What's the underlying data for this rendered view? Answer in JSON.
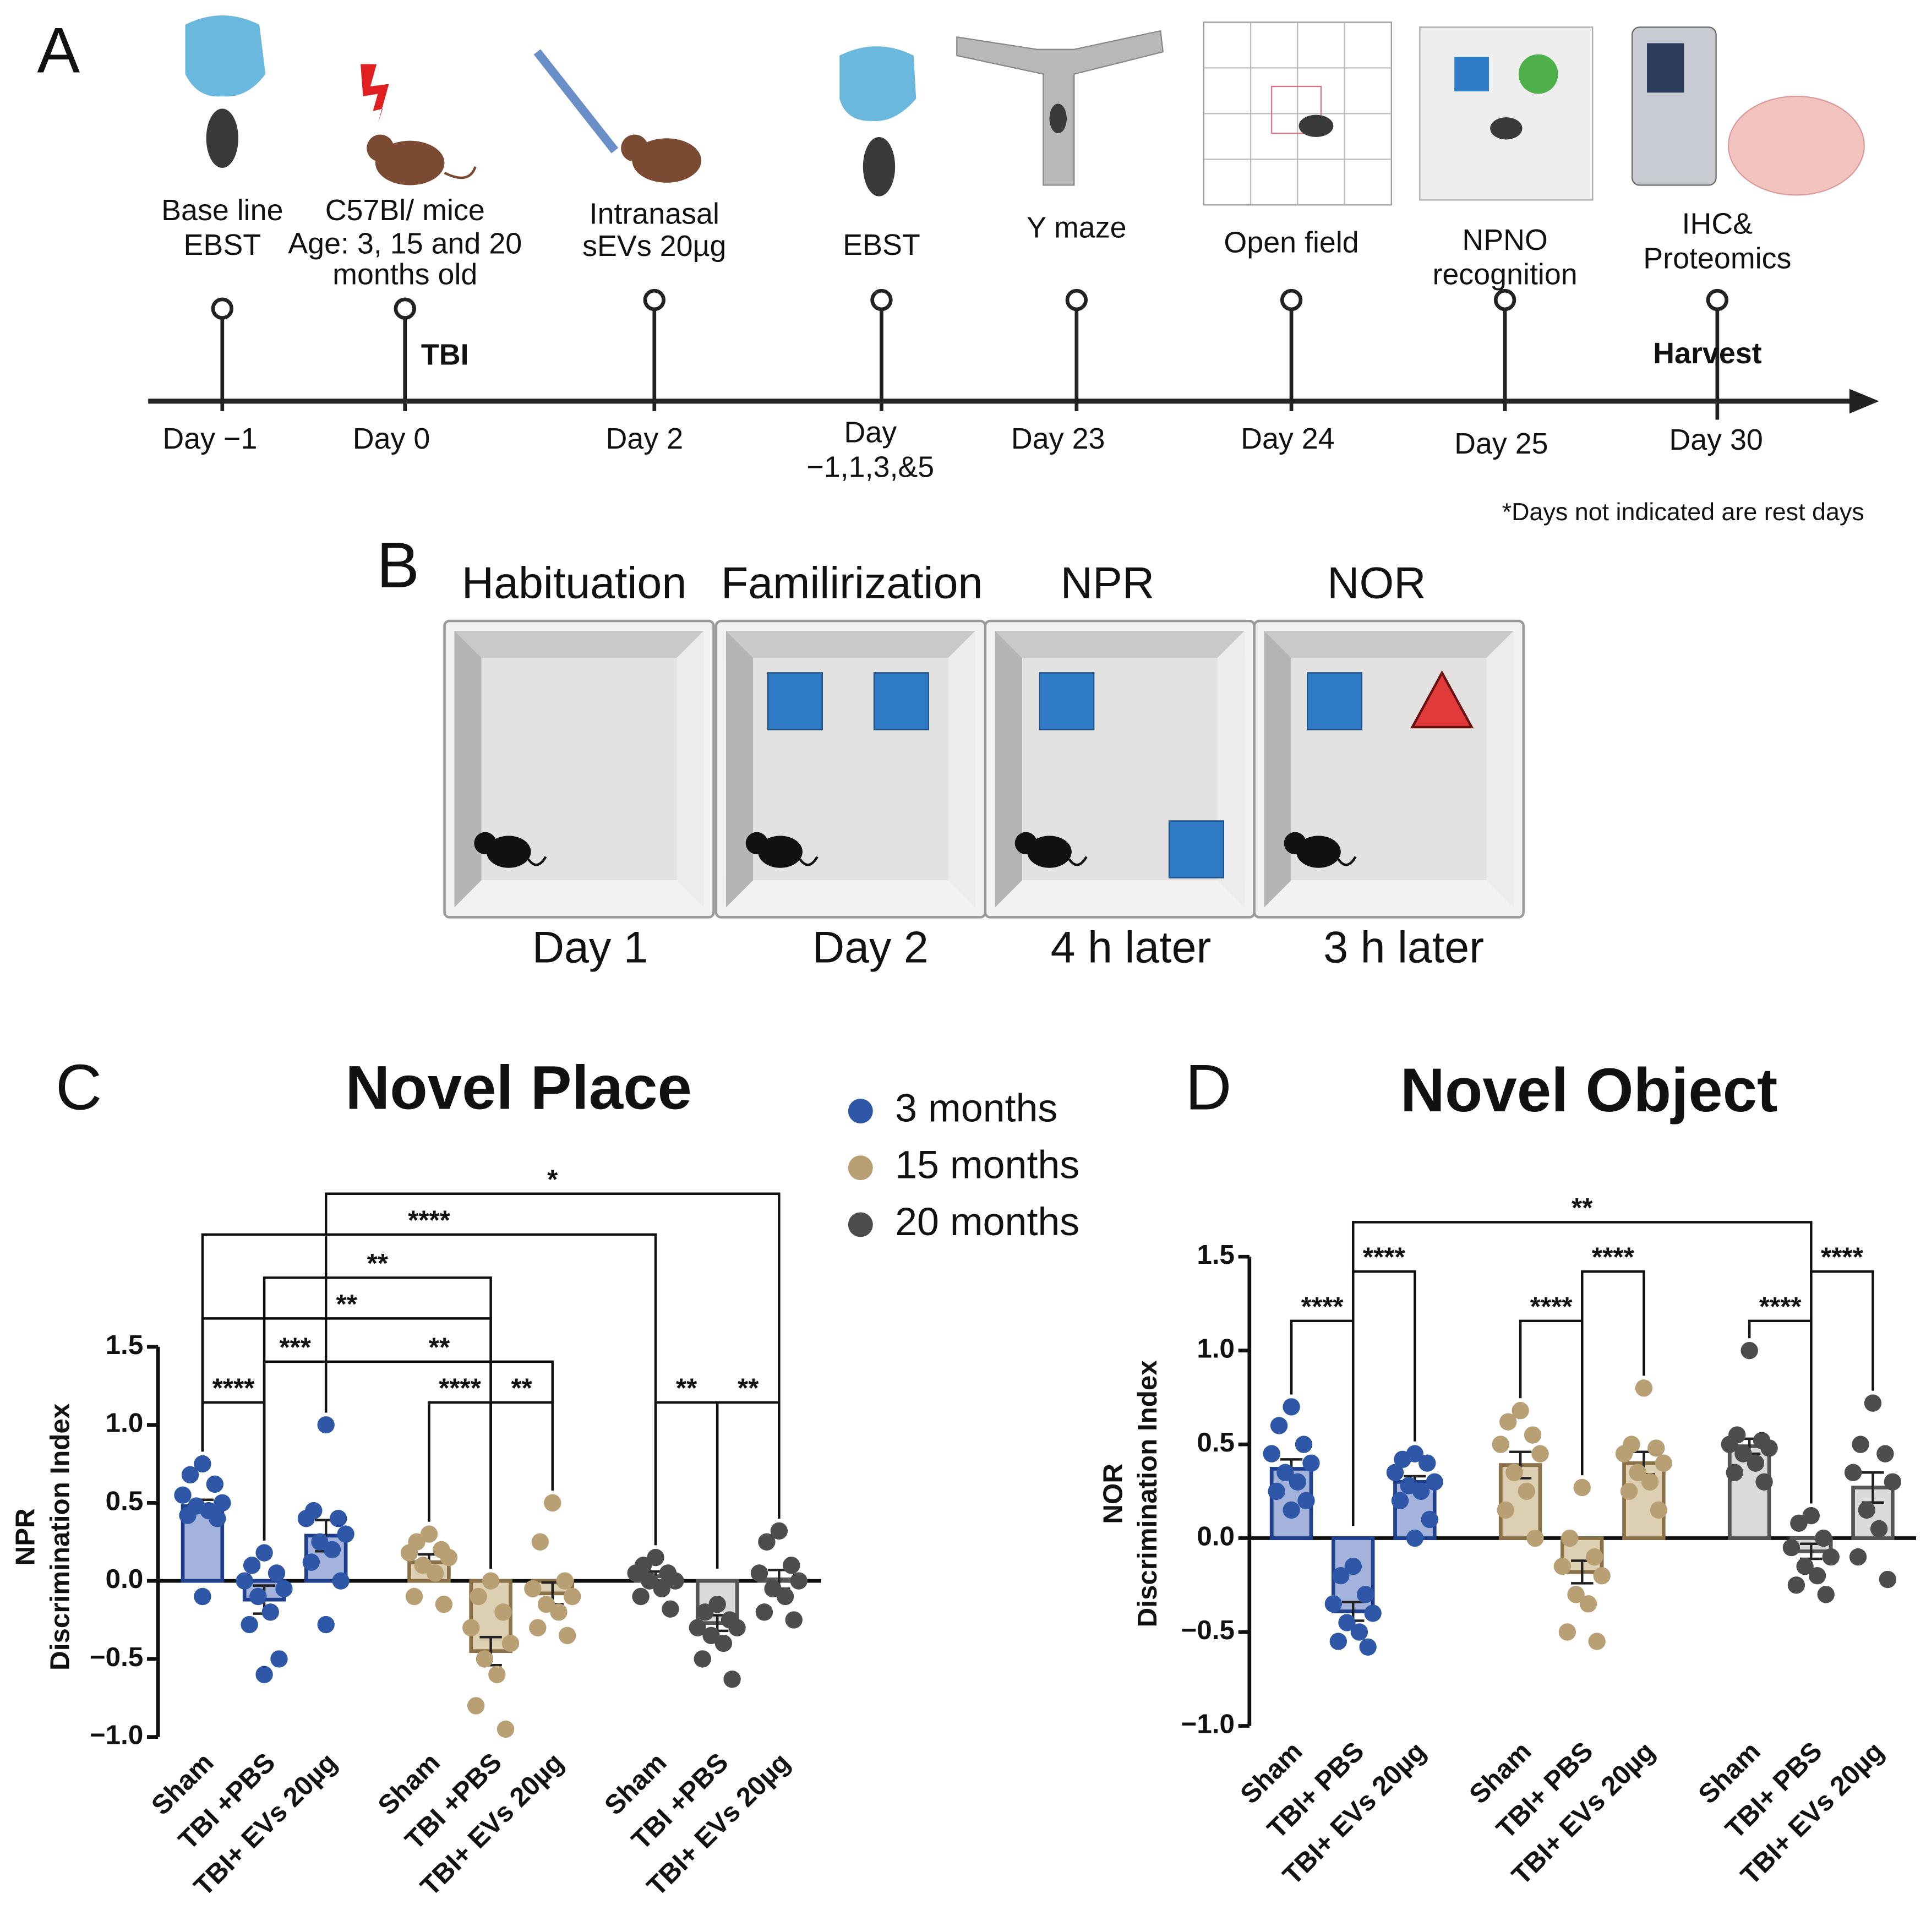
{
  "panel_labels": [
    "A",
    "B",
    "C",
    "D"
  ],
  "timeline": {
    "events": [
      {
        "lines": [
          "Base line",
          "EBST"
        ],
        "day": [
          "Day −1"
        ]
      },
      {
        "lines": [
          "C57Bl/ mice",
          "Age: 3, 15 and 20",
          "months old"
        ],
        "day": [
          "Day 0"
        ],
        "marker": "TBI"
      },
      {
        "lines": [
          "Intranasal",
          "sEVs 20µg"
        ],
        "day": [
          "Day 2"
        ]
      },
      {
        "lines": [
          "EBST"
        ],
        "day": [
          "Day",
          "−1,1,3,&5"
        ]
      },
      {
        "lines": [
          "Y maze"
        ],
        "day": [
          "Day 23"
        ]
      },
      {
        "lines": [
          "Open field"
        ],
        "day": [
          "Day 24"
        ]
      },
      {
        "lines": [
          "NPNO",
          "recognition"
        ],
        "day": [
          "Day 25"
        ]
      },
      {
        "lines": [
          "IHC&",
          "Proteomics"
        ],
        "day": [
          "Day 30"
        ],
        "marker": "Harvest"
      }
    ],
    "note": "*Days not indicated are rest days"
  },
  "protocol": {
    "stages": [
      {
        "title": "Habituation",
        "footer": "Day 1"
      },
      {
        "title": "Familirization",
        "footer": "Day 2"
      },
      {
        "title": "NPR",
        "footer": "4 h later"
      },
      {
        "title": "NOR",
        "footer": "3 h later"
      }
    ]
  },
  "chart_data": [
    {
      "type": "bar",
      "title": "Novel Place",
      "ylabel": [
        "NPR",
        "Discrimination Index"
      ],
      "categories": [
        "Sham",
        "TBI +PBS",
        "TBI+ EVs 20µg"
      ],
      "ylim": [
        -1.0,
        1.5
      ],
      "yticks": [
        {
          "value": -1.0,
          "label": "−1.0"
        },
        {
          "value": -0.5,
          "label": "−0.5"
        },
        {
          "value": 0.0,
          "label": "0.0"
        },
        0.5,
        {
          "value": 1.0,
          "label": "1.0"
        },
        1.5
      ],
      "legend": "upper right",
      "series": [
        {
          "name": "3 months",
          "color": "#2f57a8",
          "fill": "#a3b3dc",
          "edge": "#1f3f8f",
          "values": [
            0.48,
            -0.12,
            0.29
          ],
          "errors": [
            0.04,
            0.09,
            0.1
          ],
          "points": [
            [
              0.75,
              0.68,
              0.62,
              0.55,
              0.5,
              0.48,
              0.45,
              0.42,
              0.4,
              -0.1
            ],
            [
              0.18,
              0.1,
              0.05,
              0.0,
              -0.05,
              -0.1,
              -0.2,
              -0.28,
              -0.5,
              -0.6
            ],
            [
              1.0,
              0.45,
              0.4,
              0.4,
              0.3,
              0.25,
              0.2,
              0.12,
              0.0,
              -0.28
            ]
          ]
        },
        {
          "name": "15 months",
          "color": "#b8a074",
          "fill": "#ddcfb2",
          "edge": "#8a7148",
          "values": [
            0.12,
            -0.45,
            -0.08
          ],
          "errors": [
            0.05,
            0.09,
            0.07
          ],
          "points": [
            [
              0.3,
              0.25,
              0.2,
              0.18,
              0.15,
              0.1,
              0.05,
              -0.1,
              -0.15
            ],
            [
              0.0,
              -0.1,
              -0.2,
              -0.3,
              -0.4,
              -0.5,
              -0.6,
              -0.8,
              -0.95
            ],
            [
              0.5,
              0.25,
              0.0,
              -0.05,
              -0.1,
              -0.15,
              -0.2,
              -0.3,
              -0.35
            ]
          ]
        },
        {
          "name": "20 months",
          "color": "#4d4d4d",
          "fill": "#d9dcd8",
          "edge": "#555555",
          "values": [
            0.03,
            -0.27,
            0.01
          ],
          "errors": [
            0.03,
            0.05,
            0.06
          ],
          "points": [
            [
              0.15,
              0.1,
              0.05,
              0.05,
              0.0,
              0.0,
              -0.05,
              -0.1,
              -0.18
            ],
            [
              -0.15,
              -0.2,
              -0.25,
              -0.3,
              -0.3,
              -0.35,
              -0.4,
              -0.5,
              -0.63
            ],
            [
              0.32,
              0.25,
              0.1,
              0.05,
              0.0,
              -0.05,
              -0.1,
              -0.2,
              -0.25
            ]
          ]
        }
      ],
      "brackets": [
        {
          "groups": [
            0,
            1
          ],
          "label": "****"
        },
        {
          "groups": [
            1,
            2
          ],
          "label": "***"
        },
        {
          "groups": [
            2,
            5
          ],
          "label": "**"
        },
        {
          "groups": [
            0,
            4
          ],
          "label": "**"
        },
        {
          "groups": [
            1,
            4
          ],
          "label": "**"
        },
        {
          "groups": [
            0,
            6
          ],
          "label": "****"
        },
        {
          "groups": [
            2,
            8
          ],
          "label": "*"
        },
        {
          "groups": [
            3,
            4
          ],
          "label": "****"
        },
        {
          "groups": [
            4,
            5
          ],
          "label": "**"
        },
        {
          "groups": [
            6,
            7
          ],
          "label": "**"
        },
        {
          "groups": [
            7,
            8
          ],
          "label": "**"
        }
      ]
    },
    {
      "type": "bar",
      "title": "Novel Object",
      "ylabel": [
        "NOR",
        "Discrimination Index"
      ],
      "categories": [
        "Sham",
        "TBI+ PBS",
        "TBI+ EVs 20µg"
      ],
      "ylim": [
        -1.0,
        1.5
      ],
      "yticks": [
        {
          "value": -1.0,
          "label": "−1.0"
        },
        {
          "value": -0.5,
          "label": "−0.5"
        },
        {
          "value": 0.0,
          "label": "0.0"
        },
        0.5,
        {
          "value": 1.0,
          "label": "1.0"
        },
        1.5
      ],
      "series": [
        {
          "color": "#2f57a8",
          "fill": "#a3b3dc",
          "edge": "#1f3f8f",
          "values": [
            0.37,
            -0.39,
            0.3
          ],
          "errors": [
            0.05,
            0.05,
            0.03
          ],
          "points": [
            [
              0.7,
              0.6,
              0.5,
              0.45,
              0.4,
              0.35,
              0.3,
              0.25,
              0.2,
              0.15
            ],
            [
              -0.15,
              -0.2,
              -0.3,
              -0.35,
              -0.4,
              -0.45,
              -0.5,
              -0.55,
              -0.58
            ],
            [
              0.45,
              0.42,
              0.4,
              0.35,
              0.3,
              0.28,
              0.25,
              0.2,
              0.1,
              0.0
            ]
          ]
        },
        {
          "color": "#b8a074",
          "fill": "#ddcfb2",
          "edge": "#8a7148",
          "values": [
            0.39,
            -0.18,
            0.4
          ],
          "errors": [
            0.07,
            0.06,
            0.06
          ],
          "points": [
            [
              0.68,
              0.62,
              0.55,
              0.5,
              0.45,
              0.35,
              0.25,
              0.15,
              0.0
            ],
            [
              0.27,
              0.0,
              -0.1,
              -0.15,
              -0.2,
              -0.3,
              -0.35,
              -0.5,
              -0.55
            ],
            [
              0.8,
              0.5,
              0.48,
              0.45,
              0.4,
              0.35,
              0.3,
              0.25,
              0.15
            ]
          ]
        },
        {
          "color": "#4d4d4d",
          "fill": "#d9dcd8",
          "edge": "#555555",
          "values": [
            0.49,
            -0.07,
            0.27
          ],
          "errors": [
            0.04,
            0.04,
            0.08
          ],
          "points": [
            [
              1.0,
              0.55,
              0.52,
              0.5,
              0.48,
              0.45,
              0.4,
              0.35,
              0.3
            ],
            [
              0.12,
              0.08,
              0.0,
              -0.05,
              -0.1,
              -0.15,
              -0.2,
              -0.25,
              -0.3
            ],
            [
              0.72,
              0.5,
              0.45,
              0.35,
              0.3,
              0.15,
              0.05,
              -0.1,
              -0.22
            ]
          ]
        }
      ],
      "brackets": [
        {
          "groups": [
            0,
            1
          ],
          "label": "****"
        },
        {
          "groups": [
            1,
            2
          ],
          "label": "****"
        },
        {
          "groups": [
            3,
            4
          ],
          "label": "****"
        },
        {
          "groups": [
            4,
            5
          ],
          "label": "****"
        },
        {
          "groups": [
            6,
            7
          ],
          "label": "****"
        },
        {
          "groups": [
            7,
            8
          ],
          "label": "****"
        },
        {
          "groups": [
            1,
            7
          ],
          "label": "**"
        }
      ]
    }
  ]
}
